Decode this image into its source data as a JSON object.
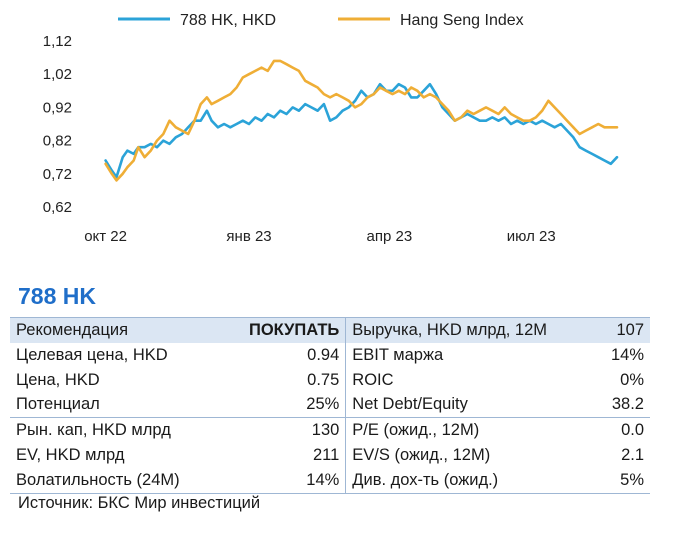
{
  "chart_data": {
    "type": "line",
    "series": [
      {
        "name": "788 HK, HKD",
        "color": "#2ba3d8",
        "points": [
          [
            "2022-10-01",
            0.76
          ],
          [
            "2022-10-05",
            0.73
          ],
          [
            "2022-10-08",
            0.71
          ],
          [
            "2022-10-12",
            0.77
          ],
          [
            "2022-10-15",
            0.79
          ],
          [
            "2022-10-19",
            0.78
          ],
          [
            "2022-10-22",
            0.8
          ],
          [
            "2022-10-26",
            0.8
          ],
          [
            "2022-10-30",
            0.81
          ],
          [
            "2022-11-03",
            0.8
          ],
          [
            "2022-11-07",
            0.82
          ],
          [
            "2022-11-11",
            0.81
          ],
          [
            "2022-11-15",
            0.83
          ],
          [
            "2022-11-19",
            0.84
          ],
          [
            "2022-11-23",
            0.86
          ],
          [
            "2022-11-27",
            0.88
          ],
          [
            "2022-12-01",
            0.88
          ],
          [
            "2022-12-05",
            0.91
          ],
          [
            "2022-12-08",
            0.88
          ],
          [
            "2022-12-12",
            0.86
          ],
          [
            "2022-12-16",
            0.87
          ],
          [
            "2022-12-20",
            0.86
          ],
          [
            "2022-12-24",
            0.87
          ],
          [
            "2022-12-28",
            0.88
          ],
          [
            "2023-01-01",
            0.87
          ],
          [
            "2023-01-05",
            0.89
          ],
          [
            "2023-01-09",
            0.88
          ],
          [
            "2023-01-13",
            0.9
          ],
          [
            "2023-01-17",
            0.89
          ],
          [
            "2023-01-21",
            0.91
          ],
          [
            "2023-01-25",
            0.9
          ],
          [
            "2023-01-29",
            0.92
          ],
          [
            "2023-02-02",
            0.91
          ],
          [
            "2023-02-06",
            0.93
          ],
          [
            "2023-02-10",
            0.92
          ],
          [
            "2023-02-14",
            0.91
          ],
          [
            "2023-02-18",
            0.93
          ],
          [
            "2023-02-22",
            0.88
          ],
          [
            "2023-02-26",
            0.89
          ],
          [
            "2023-03-02",
            0.91
          ],
          [
            "2023-03-06",
            0.92
          ],
          [
            "2023-03-10",
            0.94
          ],
          [
            "2023-03-14",
            0.97
          ],
          [
            "2023-03-18",
            0.95
          ],
          [
            "2023-03-22",
            0.96
          ],
          [
            "2023-03-26",
            0.99
          ],
          [
            "2023-03-30",
            0.97
          ],
          [
            "2023-04-03",
            0.97
          ],
          [
            "2023-04-07",
            0.99
          ],
          [
            "2023-04-11",
            0.98
          ],
          [
            "2023-04-15",
            0.95
          ],
          [
            "2023-04-19",
            0.95
          ],
          [
            "2023-04-23",
            0.97
          ],
          [
            "2023-04-27",
            0.99
          ],
          [
            "2023-05-01",
            0.96
          ],
          [
            "2023-05-05",
            0.92
          ],
          [
            "2023-05-09",
            0.9
          ],
          [
            "2023-05-13",
            0.88
          ],
          [
            "2023-05-17",
            0.89
          ],
          [
            "2023-05-21",
            0.9
          ],
          [
            "2023-05-25",
            0.89
          ],
          [
            "2023-05-29",
            0.88
          ],
          [
            "2023-06-02",
            0.88
          ],
          [
            "2023-06-06",
            0.89
          ],
          [
            "2023-06-10",
            0.88
          ],
          [
            "2023-06-14",
            0.89
          ],
          [
            "2023-06-18",
            0.87
          ],
          [
            "2023-06-22",
            0.88
          ],
          [
            "2023-06-26",
            0.87
          ],
          [
            "2023-06-30",
            0.88
          ],
          [
            "2023-07-04",
            0.87
          ],
          [
            "2023-07-08",
            0.88
          ],
          [
            "2023-07-12",
            0.87
          ],
          [
            "2023-07-16",
            0.86
          ],
          [
            "2023-07-20",
            0.87
          ],
          [
            "2023-07-24",
            0.85
          ],
          [
            "2023-07-28",
            0.83
          ],
          [
            "2023-08-01",
            0.8
          ],
          [
            "2023-08-05",
            0.79
          ],
          [
            "2023-08-09",
            0.78
          ],
          [
            "2023-08-13",
            0.77
          ],
          [
            "2023-08-17",
            0.76
          ],
          [
            "2023-08-21",
            0.75
          ],
          [
            "2023-08-25",
            0.77
          ]
        ]
      },
      {
        "name": "Hang Seng Index",
        "color": "#efae36",
        "points": [
          [
            "2022-10-01",
            0.75
          ],
          [
            "2022-10-05",
            0.72
          ],
          [
            "2022-10-08",
            0.7
          ],
          [
            "2022-10-12",
            0.72
          ],
          [
            "2022-10-15",
            0.74
          ],
          [
            "2022-10-19",
            0.76
          ],
          [
            "2022-10-22",
            0.8
          ],
          [
            "2022-10-26",
            0.77
          ],
          [
            "2022-10-30",
            0.79
          ],
          [
            "2022-11-03",
            0.82
          ],
          [
            "2022-11-07",
            0.84
          ],
          [
            "2022-11-11",
            0.88
          ],
          [
            "2022-11-15",
            0.86
          ],
          [
            "2022-11-19",
            0.85
          ],
          [
            "2022-11-23",
            0.84
          ],
          [
            "2022-11-27",
            0.88
          ],
          [
            "2022-12-01",
            0.93
          ],
          [
            "2022-12-05",
            0.95
          ],
          [
            "2022-12-08",
            0.93
          ],
          [
            "2022-12-12",
            0.94
          ],
          [
            "2022-12-16",
            0.95
          ],
          [
            "2022-12-20",
            0.96
          ],
          [
            "2022-12-24",
            0.98
          ],
          [
            "2022-12-28",
            1.01
          ],
          [
            "2023-01-01",
            1.02
          ],
          [
            "2023-01-05",
            1.03
          ],
          [
            "2023-01-09",
            1.04
          ],
          [
            "2023-01-13",
            1.03
          ],
          [
            "2023-01-17",
            1.06
          ],
          [
            "2023-01-21",
            1.06
          ],
          [
            "2023-01-25",
            1.05
          ],
          [
            "2023-01-29",
            1.04
          ],
          [
            "2023-02-02",
            1.03
          ],
          [
            "2023-02-06",
            1.0
          ],
          [
            "2023-02-10",
            0.99
          ],
          [
            "2023-02-14",
            0.98
          ],
          [
            "2023-02-18",
            0.96
          ],
          [
            "2023-02-22",
            0.95
          ],
          [
            "2023-02-26",
            0.96
          ],
          [
            "2023-03-02",
            0.95
          ],
          [
            "2023-03-06",
            0.94
          ],
          [
            "2023-03-10",
            0.92
          ],
          [
            "2023-03-14",
            0.93
          ],
          [
            "2023-03-18",
            0.95
          ],
          [
            "2023-03-22",
            0.96
          ],
          [
            "2023-03-26",
            0.98
          ],
          [
            "2023-03-30",
            0.97
          ],
          [
            "2023-04-03",
            0.96
          ],
          [
            "2023-04-07",
            0.97
          ],
          [
            "2023-04-11",
            0.96
          ],
          [
            "2023-04-15",
            0.98
          ],
          [
            "2023-04-19",
            0.97
          ],
          [
            "2023-04-23",
            0.95
          ],
          [
            "2023-04-27",
            0.96
          ],
          [
            "2023-05-01",
            0.95
          ],
          [
            "2023-05-05",
            0.93
          ],
          [
            "2023-05-09",
            0.91
          ],
          [
            "2023-05-13",
            0.88
          ],
          [
            "2023-05-17",
            0.89
          ],
          [
            "2023-05-21",
            0.91
          ],
          [
            "2023-05-25",
            0.9
          ],
          [
            "2023-05-29",
            0.91
          ],
          [
            "2023-06-02",
            0.92
          ],
          [
            "2023-06-06",
            0.91
          ],
          [
            "2023-06-10",
            0.9
          ],
          [
            "2023-06-14",
            0.92
          ],
          [
            "2023-06-18",
            0.9
          ],
          [
            "2023-06-22",
            0.89
          ],
          [
            "2023-06-26",
            0.88
          ],
          [
            "2023-06-30",
            0.88
          ],
          [
            "2023-07-04",
            0.89
          ],
          [
            "2023-07-08",
            0.91
          ],
          [
            "2023-07-12",
            0.94
          ],
          [
            "2023-07-16",
            0.92
          ],
          [
            "2023-07-20",
            0.9
          ],
          [
            "2023-07-24",
            0.88
          ],
          [
            "2023-07-28",
            0.86
          ],
          [
            "2023-08-01",
            0.84
          ],
          [
            "2023-08-05",
            0.85
          ],
          [
            "2023-08-09",
            0.86
          ],
          [
            "2023-08-13",
            0.87
          ],
          [
            "2023-08-17",
            0.86
          ],
          [
            "2023-08-21",
            0.86
          ],
          [
            "2023-08-25",
            0.86
          ]
        ]
      }
    ],
    "ylim": [
      0.62,
      1.12
    ],
    "xlim": [
      "2022-09-21",
      "2023-08-25"
    ],
    "yticks": [
      {
        "value": 1.12,
        "label": "1,12"
      },
      {
        "value": 1.02,
        "label": "1,02"
      },
      {
        "value": 0.92,
        "label": "0,92"
      },
      {
        "value": 0.82,
        "label": "0,82"
      },
      {
        "value": 0.72,
        "label": "0,72"
      },
      {
        "value": 0.62,
        "label": "0,62"
      }
    ],
    "xticks": [
      {
        "date": "2022-10-01",
        "label": "окт 22"
      },
      {
        "date": "2023-01-01",
        "label": "янв 23"
      },
      {
        "date": "2023-04-01",
        "label": "апр 23"
      },
      {
        "date": "2023-07-01",
        "label": "июл 23"
      }
    ],
    "legend": "top",
    "grid": false
  },
  "ticker": "788 HK",
  "table": {
    "rows": [
      [
        "Рекомендация",
        "ПОКУПАТЬ",
        "Выручка, HKD млрд, 12M",
        "107"
      ],
      [
        "Целевая цена, HKD",
        "0.94",
        "EBIT маржа",
        "14%"
      ],
      [
        "Цена, HKD",
        "0.75",
        "ROIC",
        "0%"
      ],
      [
        "Потенциал",
        "25%",
        "Net Debt/Equity",
        "38.2"
      ],
      [
        "Рын. кап, HKD млрд",
        "130",
        "P/E (ожид., 12M)",
        "0.0"
      ],
      [
        "EV, HKD млрд",
        "211",
        "EV/S (ожид., 12M)",
        "2.1"
      ],
      [
        "Волатильность (24M)",
        "14%",
        "Див. дох-ть (ожид.)",
        "5%"
      ]
    ]
  },
  "source": "Источник: БКС Мир инвестиций"
}
